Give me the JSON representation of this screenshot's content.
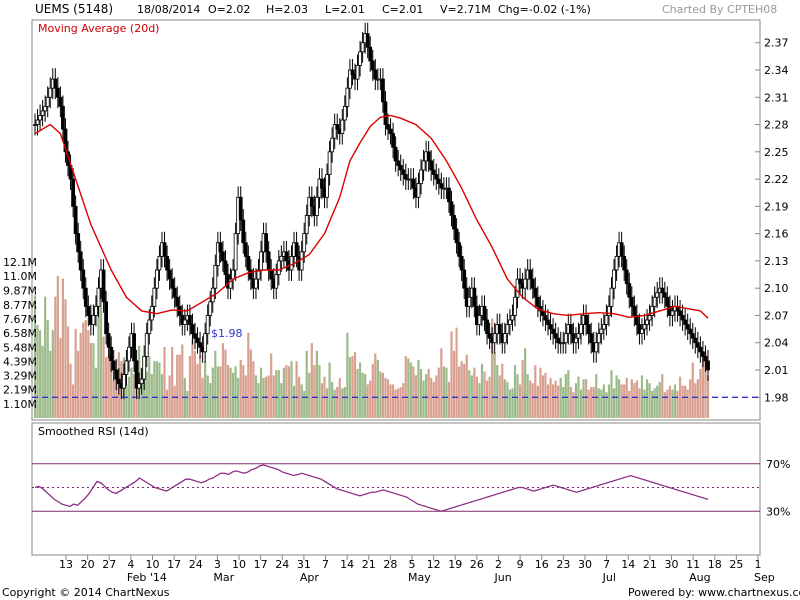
{
  "header": {
    "symbol": "UEMS (5148)",
    "date": "18/08/2014",
    "open": "O=2.02",
    "high": "H=2.03",
    "low": "L=2.01",
    "close": "C=2.01",
    "volume": "V=2.71M",
    "change": "Chg=-0.02 (-1%)",
    "charted_by": "Charted By CPTEH08"
  },
  "footer": {
    "copyright": "Copyright © 2014 ChartNexus",
    "powered_by": "Powered by: www.chartnexus.com"
  },
  "chart_data": [
    {
      "type": "candlestick",
      "panel": "price-volume",
      "title": "Moving Average (20d)",
      "price_axis": {
        "ylim": [
          1.955,
          2.395
        ],
        "ticks": [
          "2.37",
          "2.34",
          "2.31",
          "2.28",
          "2.25",
          "2.22",
          "2.19",
          "2.16",
          "2.13",
          "2.10",
          "2.07",
          "2.04",
          "2.01",
          "1.98"
        ]
      },
      "volume_axis": {
        "ticks": [
          "12.1M",
          "11.0M",
          "9.87M",
          "8.77M",
          "7.67M",
          "6.58M",
          "5.48M",
          "4.39M",
          "3.29M",
          "2.19M",
          "1.10M"
        ],
        "max": 13.4
      },
      "support_line": {
        "label": "$1.98",
        "value": 1.98,
        "color": "#3333cc"
      },
      "x_labels": [
        "13",
        "20",
        "27",
        "4",
        "10",
        "17",
        "24",
        "3",
        "10",
        "17",
        "24",
        "31",
        "7",
        "14",
        "21",
        "28",
        "5",
        "12",
        "19",
        "26",
        "2",
        "9",
        "16",
        "23",
        "30",
        "7",
        "14",
        "21",
        "30",
        "11",
        "18",
        "25",
        "1"
      ],
      "month_labels": [
        "Feb '14",
        "Mar",
        "Apr",
        "May",
        "Jun",
        "Jul",
        "Aug",
        "Sep"
      ],
      "colors": {
        "ma": "#dd0000",
        "vol_up": "#9cba8a",
        "vol_down": "#d9a090",
        "candle": "#000000"
      },
      "ma_points": [
        [
          0,
          2.27
        ],
        [
          6,
          2.28
        ],
        [
          10,
          2.27
        ],
        [
          16,
          2.22
        ],
        [
          22,
          2.17
        ],
        [
          30,
          2.12
        ],
        [
          36,
          2.09
        ],
        [
          42,
          2.075
        ],
        [
          48,
          2.072
        ],
        [
          54,
          2.076
        ],
        [
          60,
          2.075
        ],
        [
          66,
          2.085
        ],
        [
          72,
          2.095
        ],
        [
          78,
          2.11
        ],
        [
          84,
          2.117
        ],
        [
          90,
          2.12
        ],
        [
          96,
          2.12
        ],
        [
          102,
          2.127
        ],
        [
          108,
          2.137
        ],
        [
          114,
          2.16
        ],
        [
          120,
          2.2
        ],
        [
          124,
          2.24
        ],
        [
          128,
          2.26
        ],
        [
          132,
          2.278
        ],
        [
          136,
          2.288
        ],
        [
          140,
          2.29
        ],
        [
          144,
          2.287
        ],
        [
          150,
          2.28
        ],
        [
          156,
          2.265
        ],
        [
          162,
          2.24
        ],
        [
          168,
          2.21
        ],
        [
          174,
          2.175
        ],
        [
          180,
          2.145
        ],
        [
          186,
          2.11
        ],
        [
          192,
          2.09
        ],
        [
          198,
          2.077
        ],
        [
          204,
          2.072
        ],
        [
          210,
          2.07
        ],
        [
          216,
          2.072
        ],
        [
          222,
          2.073
        ],
        [
          228,
          2.072
        ],
        [
          234,
          2.068
        ],
        [
          240,
          2.07
        ],
        [
          246,
          2.075
        ],
        [
          252,
          2.08
        ],
        [
          256,
          2.078
        ],
        [
          262,
          2.075
        ],
        [
          265,
          2.067
        ]
      ],
      "price_path": [
        [
          0,
          2.28
        ],
        [
          4,
          2.3
        ],
        [
          7,
          2.33
        ],
        [
          10,
          2.3
        ],
        [
          12,
          2.25
        ],
        [
          14,
          2.22
        ],
        [
          16,
          2.16
        ],
        [
          18,
          2.12
        ],
        [
          20,
          2.08
        ],
        [
          22,
          2.06
        ],
        [
          24,
          2.08
        ],
        [
          26,
          2.12
        ],
        [
          28,
          2.05
        ],
        [
          30,
          2.02
        ],
        [
          32,
          2.0
        ],
        [
          34,
          1.99
        ],
        [
          36,
          2.02
        ],
        [
          38,
          2.05
        ],
        [
          40,
          1.99
        ],
        [
          42,
          2.0
        ],
        [
          44,
          2.05
        ],
        [
          46,
          2.08
        ],
        [
          48,
          2.12
        ],
        [
          50,
          2.15
        ],
        [
          52,
          2.12
        ],
        [
          54,
          2.1
        ],
        [
          56,
          2.08
        ],
        [
          58,
          2.06
        ],
        [
          60,
          2.07
        ],
        [
          62,
          2.05
        ],
        [
          64,
          2.04
        ],
        [
          66,
          2.03
        ],
        [
          68,
          2.07
        ],
        [
          70,
          2.1
        ],
        [
          72,
          2.15
        ],
        [
          74,
          2.13
        ],
        [
          76,
          2.1
        ],
        [
          78,
          2.12
        ],
        [
          80,
          2.2
        ],
        [
          82,
          2.15
        ],
        [
          84,
          2.12
        ],
        [
          86,
          2.1
        ],
        [
          88,
          2.12
        ],
        [
          90,
          2.16
        ],
        [
          92,
          2.12
        ],
        [
          94,
          2.1
        ],
        [
          96,
          2.13
        ],
        [
          98,
          2.14
        ],
        [
          100,
          2.12
        ],
        [
          102,
          2.15
        ],
        [
          104,
          2.12
        ],
        [
          106,
          2.16
        ],
        [
          108,
          2.2
        ],
        [
          110,
          2.18
        ],
        [
          112,
          2.22
        ],
        [
          114,
          2.2
        ],
        [
          116,
          2.25
        ],
        [
          118,
          2.28
        ],
        [
          120,
          2.27
        ],
        [
          122,
          2.3
        ],
        [
          124,
          2.34
        ],
        [
          126,
          2.33
        ],
        [
          128,
          2.36
        ],
        [
          130,
          2.38
        ],
        [
          132,
          2.35
        ],
        [
          134,
          2.33
        ],
        [
          136,
          2.33
        ],
        [
          138,
          2.28
        ],
        [
          140,
          2.27
        ],
        [
          142,
          2.24
        ],
        [
          144,
          2.23
        ],
        [
          146,
          2.22
        ],
        [
          148,
          2.22
        ],
        [
          150,
          2.2
        ],
        [
          152,
          2.23
        ],
        [
          154,
          2.25
        ],
        [
          156,
          2.23
        ],
        [
          158,
          2.22
        ],
        [
          160,
          2.21
        ],
        [
          162,
          2.21
        ],
        [
          164,
          2.18
        ],
        [
          166,
          2.15
        ],
        [
          168,
          2.12
        ],
        [
          170,
          2.08
        ],
        [
          172,
          2.1
        ],
        [
          174,
          2.06
        ],
        [
          176,
          2.08
        ],
        [
          178,
          2.05
        ],
        [
          180,
          2.04
        ],
        [
          182,
          2.06
        ],
        [
          184,
          2.04
        ],
        [
          186,
          2.06
        ],
        [
          188,
          2.07
        ],
        [
          190,
          2.11
        ],
        [
          192,
          2.1
        ],
        [
          194,
          2.12
        ],
        [
          196,
          2.1
        ],
        [
          198,
          2.08
        ],
        [
          200,
          2.07
        ],
        [
          202,
          2.06
        ],
        [
          204,
          2.05
        ],
        [
          206,
          2.04
        ],
        [
          208,
          2.04
        ],
        [
          210,
          2.06
        ],
        [
          212,
          2.04
        ],
        [
          214,
          2.05
        ],
        [
          216,
          2.07
        ],
        [
          218,
          2.05
        ],
        [
          220,
          2.03
        ],
        [
          222,
          2.05
        ],
        [
          224,
          2.06
        ],
        [
          226,
          2.08
        ],
        [
          228,
          2.12
        ],
        [
          230,
          2.15
        ],
        [
          232,
          2.12
        ],
        [
          234,
          2.09
        ],
        [
          236,
          2.07
        ],
        [
          238,
          2.05
        ],
        [
          240,
          2.06
        ],
        [
          242,
          2.07
        ],
        [
          244,
          2.09
        ],
        [
          246,
          2.1
        ],
        [
          248,
          2.09
        ],
        [
          250,
          2.07
        ],
        [
          252,
          2.08
        ],
        [
          254,
          2.07
        ],
        [
          256,
          2.06
        ],
        [
          258,
          2.05
        ],
        [
          260,
          2.04
        ],
        [
          262,
          2.03
        ],
        [
          264,
          2.02
        ],
        [
          265,
          2.01
        ]
      ],
      "volumes": [
        9.5,
        7.2,
        6.8,
        5.6,
        9.4,
        7.6,
        5.2,
        6.8,
        9.4,
        11,
        6.2,
        10.8,
        9.2,
        7.1,
        4.2,
        2.6,
        6.9,
        5.2,
        6.6,
        7.4,
        7.6,
        6.8,
        5.8,
        5.8,
        3.9,
        9.6,
        10.8,
        6.3,
        4.7,
        4.8,
        4.3,
        2.9,
        3.7,
        5.1,
        4.4,
        4.7,
        2.6,
        3.2,
        3.9,
        3.4,
        4.5,
        5.6,
        3.9,
        4.2,
        3.6,
        4.8,
        3.4,
        4.4,
        4.4,
        4.3,
        3.4,
        5.5,
        2.2,
        3.3,
        5.5,
        2.5,
        4.9,
        4.9,
        5.7,
        3.1,
        2.1,
        4.8,
        6.1,
        5.2,
        4.2,
        4.8,
        3.1,
        4.4,
        3.3,
        2.7,
        3.9,
        5.2,
        4.0,
        4.0,
        5.8,
        5.3,
        4.1,
        3.9,
        3.5,
        4.0,
        3.1,
        4.5,
        4.1,
        3.3,
        6.6,
        5.3,
        4.4,
        3.3,
        2.7,
        3.9,
        3.1,
        3.2,
        3.3,
        5.0,
        3.3,
        3.7,
        3.7,
        2.7,
        3.9,
        4.1,
        4.0,
        4.4,
        2.5,
        4.4,
        3.2,
        2.6,
        2.1,
        5.2,
        3.5,
        5.8,
        4.1,
        5.2,
        4.1,
        2.7,
        3.2,
        2.3,
        4.3,
        2.8,
        2.2,
        2.4,
        3.1,
        2.3,
        2.4,
        6.6,
        4.7,
        4.8,
        5.1,
        3.8,
        4.3,
        3.5,
        3.4,
        2.6,
        2.9,
        4.2,
        5.0,
        4.5,
        3.6,
        3.5,
        3.1,
        3.0,
        2.6,
        2.6,
        2.2,
        2.3,
        2.4,
        2.7,
        4.8,
        4.6,
        4.3,
        4.0,
        3.3,
        4.5,
        3.8,
        2.9,
        3.4,
        3.8,
        3.1,
        2.8,
        3.3,
        3.9,
        5.4,
        4.0,
        3.9,
        2.8,
        6.7,
        5.2,
        7.0,
        4.0,
        4.4,
        4.2,
        4.9,
        3.7,
        3.3,
        3.9,
        3.2,
        2.7,
        4.2,
        3.6,
        2.9,
        3.2,
        7.7,
        5.1,
        4.1,
        3.3,
        4.2,
        3.0,
        2.8,
        2.2,
        2.3,
        4.1,
        3.4,
        2.6,
        4.5,
        5.4,
        3.4,
        2.9,
        2.7,
        4.1,
        2.5,
        3.9,
        3.3,
        3.5,
        2.6,
        3.1,
        2.6,
        2.9,
        2.5,
        3.1,
        2.4,
        3.4,
        3.7,
        2.4,
        2.0,
        2.7,
        3.2,
        2.2,
        3.0,
        3.0,
        2.2,
        2.4,
        2.4,
        3.4,
        2.3,
        2.2,
        2.6,
        2.0,
        2.6,
        3.7,
        2.3,
        3.3,
        3.0,
        2.6,
        2.6,
        3.1,
        2.1,
        3.0,
        2.7,
        2.9,
        2.3,
        3.3,
        2.2,
        3.0,
        2.7,
        2.1,
        2.3,
        2.5,
        2.8,
        3.4,
        2.0,
        2.2,
        2.5,
        2.2,
        2.6,
        2.1,
        3.2,
        2.5,
        2.5,
        2.2,
        3.0,
        4.3,
        2.7,
        3.0,
        3.8,
        4.9,
        5.1,
        3.3
      ]
    },
    {
      "type": "line",
      "panel": "rsi",
      "title": "Smoothed RSI (14d)",
      "ylim": [
        10,
        90
      ],
      "levels": [
        {
          "value": 70,
          "label": "70%",
          "style": "solid"
        },
        {
          "value": 50,
          "label": "",
          "style": "dotted"
        },
        {
          "value": 30,
          "label": "30%",
          "style": "solid"
        }
      ],
      "color": "#8b2d82",
      "values": [
        50,
        51,
        49,
        46,
        43,
        40,
        38,
        36,
        35,
        34,
        36,
        35,
        38,
        41,
        45,
        50,
        55,
        54,
        51,
        48,
        46,
        45,
        47,
        49,
        51,
        53,
        55,
        58,
        56,
        54,
        52,
        50,
        49,
        48,
        47,
        49,
        51,
        53,
        55,
        57,
        57,
        56,
        55,
        54,
        55,
        57,
        58,
        60,
        62,
        62,
        61,
        63,
        64,
        63,
        62,
        63,
        65,
        66,
        68,
        69,
        68,
        67,
        66,
        65,
        63,
        62,
        61,
        60,
        61,
        62,
        61,
        60,
        59,
        58,
        57,
        55,
        53,
        51,
        49,
        48,
        47,
        46,
        45,
        44,
        43,
        44,
        45,
        46,
        46,
        47,
        48,
        47,
        46,
        45,
        44,
        43,
        42,
        40,
        38,
        36,
        35,
        34,
        33,
        32,
        31,
        30,
        31,
        32,
        33,
        34,
        35,
        36,
        37,
        38,
        39,
        40,
        41,
        42,
        43,
        44,
        45,
        46,
        47,
        48,
        49,
        50,
        50,
        49,
        48,
        47,
        48,
        49,
        50,
        51,
        52,
        51,
        50,
        49,
        48,
        47,
        46,
        47,
        48,
        49,
        50,
        51,
        52,
        53,
        54,
        55,
        56,
        57,
        58,
        59,
        60,
        59,
        58,
        57,
        56,
        55,
        54,
        53,
        52,
        51,
        50,
        49,
        48,
        47,
        46,
        45,
        44,
        43,
        42,
        41,
        40
      ]
    }
  ]
}
